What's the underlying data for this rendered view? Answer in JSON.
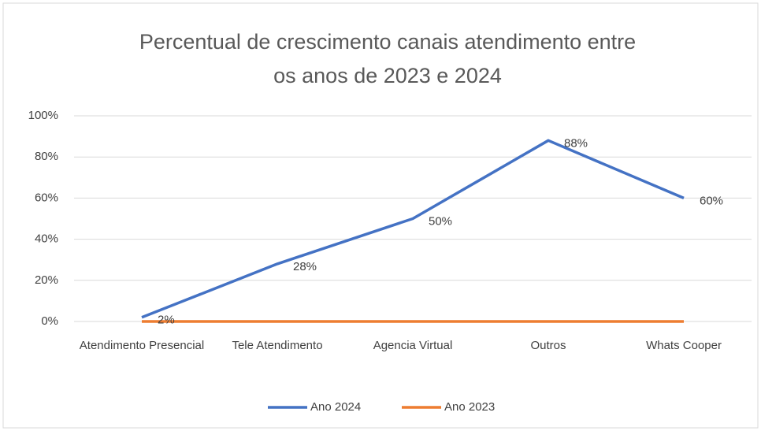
{
  "chart_data": {
    "type": "line",
    "title": [
      "Percentual de crescimento canais atendimento entre",
      "os anos de 2023 e 2024"
    ],
    "categories": [
      "Atendimento Presencial",
      "Tele Atendimento",
      "Agencia Virtual",
      "Outros",
      "Whats Cooper"
    ],
    "series": [
      {
        "name": "Ano 2024",
        "color": "#4472c4",
        "values": [
          2,
          28,
          50,
          88,
          60
        ],
        "value_labels": [
          "2%",
          "28%",
          "50%",
          "88%",
          "60%"
        ]
      },
      {
        "name": "Ano 2023",
        "color": "#ed7d31",
        "values": [
          0,
          0,
          0,
          0,
          0
        ]
      }
    ],
    "ylim": [
      0,
      100
    ],
    "yticks": [
      {
        "value": 0,
        "label": "0%"
      },
      {
        "value": 20,
        "label": "20%"
      },
      {
        "value": 40,
        "label": "40%"
      },
      {
        "value": 60,
        "label": "60%"
      },
      {
        "value": 80,
        "label": "80%"
      },
      {
        "value": 100,
        "label": "100%"
      }
    ],
    "grid": true,
    "legend": "bottom"
  }
}
